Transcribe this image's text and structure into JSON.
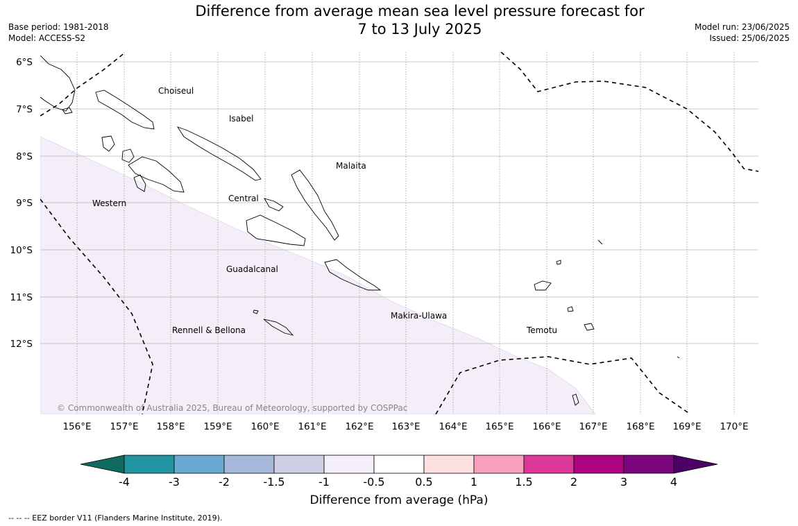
{
  "title": {
    "line1": "Difference from average mean sea level pressure forecast for",
    "line2": "7 to 13 July 2025"
  },
  "meta_left": {
    "base_period": "Base period: 1981-2018",
    "model": "Model: ACCESS-S2"
  },
  "meta_right": {
    "model_run": "Model run: 23/06/2025",
    "issued": "Issued: 25/06/2025"
  },
  "map": {
    "lat_labels": [
      "6°S",
      "7°S",
      "8°S",
      "9°S",
      "10°S",
      "11°S",
      "12°S"
    ],
    "lon_labels": [
      "156°E",
      "157°E",
      "158°E",
      "159°E",
      "160°E",
      "161°E",
      "162°E",
      "163°E",
      "164°E",
      "165°E",
      "166°E",
      "167°E",
      "168°E",
      "169°E",
      "170°E"
    ],
    "regions": [
      "Choiseul",
      "Isabel",
      "Malaita",
      "Western",
      "Central",
      "Guadalcanal",
      "Makira-Ulawa",
      "Rennell & Bellona",
      "Temotu"
    ],
    "anomaly_area_class": "-1 to -0.5",
    "copyright": "© Commonwealth of Australia 2025, Bureau of Meteorology, supported by COSPPac"
  },
  "colorbar": {
    "ticks": [
      "-4",
      "-3",
      "-2",
      "-1.5",
      "-1",
      "-0.5",
      "0.5",
      "1",
      "1.5",
      "2",
      "3",
      "4"
    ],
    "colors": [
      "#0f6b60",
      "#2293a0",
      "#6aa9d2",
      "#a7b9db",
      "#cfcfe3",
      "#f3eef7",
      "#ffffff",
      "#fde0e0",
      "#f7a1bd",
      "#dc3898",
      "#ac0381",
      "#7b057c",
      "#4c0264"
    ],
    "label": "Difference from average (hPa)"
  },
  "footnote": "--  --  -- EEZ border V11 (Flanders Marine Institute, 2019)."
}
